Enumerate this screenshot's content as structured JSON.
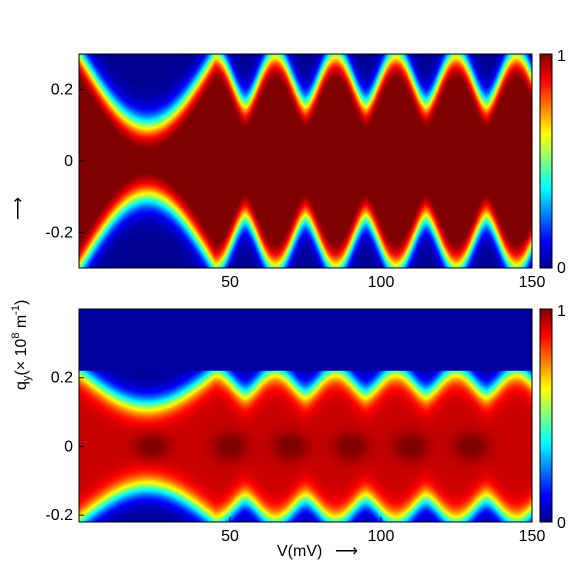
{
  "chart_data": [
    {
      "type": "heatmap",
      "panel": "top",
      "x_range": [
        0,
        150
      ],
      "y_range": [
        -0.3,
        0.3
      ],
      "x_ticks": [
        "50",
        "100",
        "150"
      ],
      "x_tick_values": [
        50,
        100,
        150
      ],
      "y_ticks": [
        "0.2",
        "0",
        "-0.2"
      ],
      "y_tick_values": [
        0.2,
        0,
        -0.2
      ],
      "colorbar": {
        "min": 0,
        "max": 1,
        "labels": [
          "1",
          "0"
        ],
        "colormap": "jet"
      },
      "features": {
        "first_lobe": {
          "v_start": 0,
          "v_end": 45,
          "center_halfwidth": 0.1
        },
        "arch_peaks_v": [
          50,
          70,
          90,
          110,
          130,
          150
        ],
        "arch_valley_halfwidth": 0.16,
        "arch_peak_halfwidth": 0.3,
        "max_value_region": "center band near q_y = 0"
      },
      "grid": false
    },
    {
      "type": "heatmap",
      "panel": "bottom",
      "x_range": [
        0,
        150
      ],
      "y_range": [
        -0.22,
        0.4
      ],
      "x_ticks": [
        "50",
        "100",
        "150"
      ],
      "x_tick_values": [
        50,
        100,
        150
      ],
      "y_ticks": [
        "0.2",
        "0",
        "-0.2"
      ],
      "y_tick_values": [
        0.2,
        0,
        -0.2
      ],
      "colorbar": {
        "min": 0,
        "max": 1,
        "labels": [
          "1",
          "0"
        ],
        "colormap": "jet"
      },
      "features": {
        "upper_cutoff_qy": 0.22,
        "dark_spots_v": [
          24,
          50,
          70,
          90,
          110,
          130
        ],
        "first_lobe": {
          "v_start": 0,
          "v_end": 45,
          "center_halfwidth": 0.12
        },
        "arch_peaks_v": [
          45,
          65,
          85,
          105,
          125,
          145
        ],
        "max_value_region": "dark red spots along q_y = 0"
      },
      "grid": false
    }
  ],
  "labels": {
    "ylabel_text": "q",
    "ylabel_sub": "y",
    "ylabel_unit": "(× 10",
    "ylabel_exp": "8",
    "ylabel_unit2": " m",
    "ylabel_exp2": "-1",
    "ylabel_close": ")",
    "xlabel": "V(mV)",
    "arrow": "⟶"
  },
  "colors": {
    "jet_stops": [
      "#00008f",
      "#0000ff",
      "#00ffff",
      "#ffff00",
      "#ff0000",
      "#800000"
    ]
  }
}
